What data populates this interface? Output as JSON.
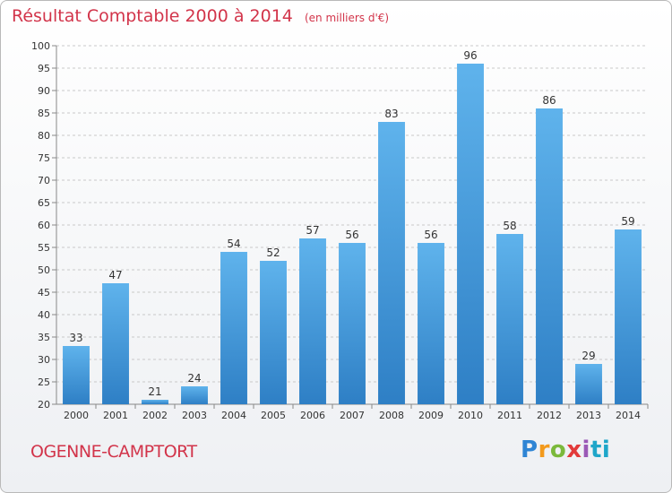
{
  "title": {
    "main": "Résultat Comptable 2000 à 2014",
    "unit": "(en milliers d'€)"
  },
  "place": "OGENNE-CAMPTORT",
  "brand": {
    "letters": [
      "P",
      "r",
      "o",
      "x",
      "i",
      "ti"
    ]
  },
  "colors": {
    "accent": "#d2344a",
    "bar_light": "#5fb3ec",
    "bar_dark": "#2e7fc5",
    "grid": "#c9c9c9"
  },
  "chart_data": {
    "type": "bar",
    "categories": [
      "2000",
      "2001",
      "2002",
      "2003",
      "2004",
      "2005",
      "2006",
      "2007",
      "2008",
      "2009",
      "2010",
      "2011",
      "2012",
      "2013",
      "2014"
    ],
    "values": [
      33,
      47,
      21,
      24,
      54,
      52,
      57,
      56,
      83,
      56,
      96,
      58,
      86,
      29,
      59
    ],
    "ylim": [
      20,
      100
    ],
    "yticks": [
      20,
      25,
      30,
      35,
      40,
      45,
      50,
      55,
      60,
      65,
      70,
      75,
      80,
      85,
      90,
      95,
      100
    ],
    "grid": true,
    "data_labels": true
  }
}
